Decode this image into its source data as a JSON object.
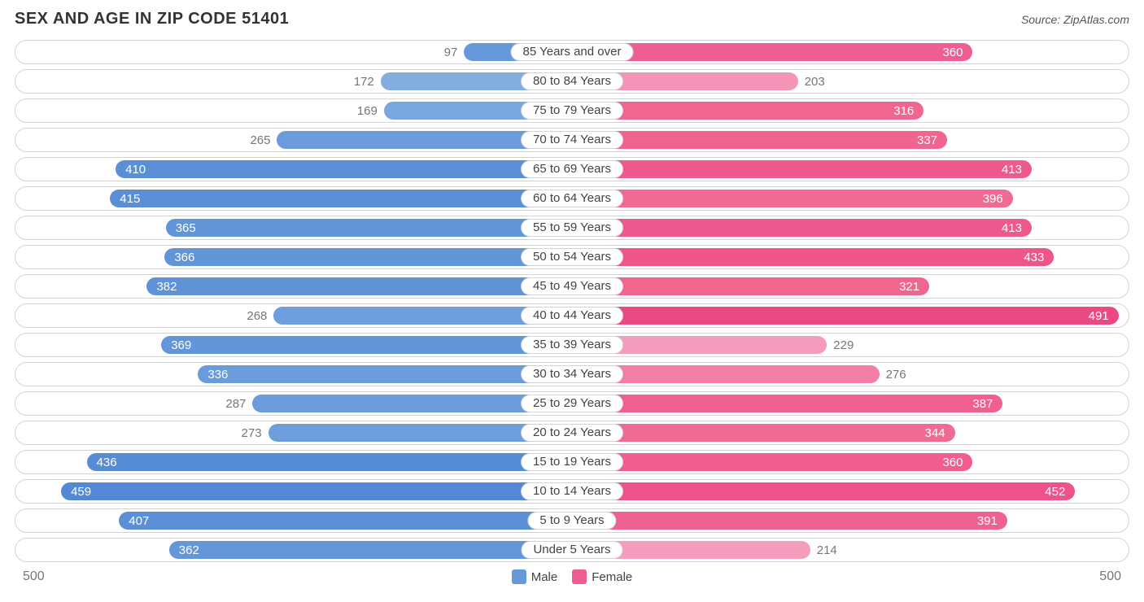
{
  "title": "SEX AND AGE IN ZIP CODE 51401",
  "source": "Source: ZipAtlas.com",
  "axis_max": 500,
  "axis_label_left": "500",
  "axis_label_right": "500",
  "legend": {
    "male": {
      "label": "Male",
      "color": "#6699dc"
    },
    "female": {
      "label": "Female",
      "color": "#ef5e93"
    }
  },
  "colors": {
    "male_shades": [
      "#6699dc",
      "#83acdf",
      "#79a6df",
      "#6b9bdb",
      "#5a8fd6",
      "#5a8fd6",
      "#6294d8",
      "#6294d8",
      "#5f92d7",
      "#6f9edc",
      "#6395d9",
      "#6a9bdb",
      "#6c9cdb",
      "#6e9ddc",
      "#568cd5",
      "#5389d4",
      "#5c90d6",
      "#6496d9"
    ],
    "female_shades": [
      "#ef5e93",
      "#f494b7",
      "#f0668f",
      "#f06490",
      "#ee5a8d",
      "#f06a93",
      "#ee598d",
      "#ed558b",
      "#f0668f",
      "#ea4984",
      "#f59bbb",
      "#f27ea4",
      "#ef608e",
      "#f06b94",
      "#ef5e8e",
      "#ed538a",
      "#ef6190",
      "#f59dbd"
    ],
    "border": "#d4d4d8",
    "bg": "#ffffff",
    "text": "#434345",
    "muted": "#767678"
  },
  "value_inside_threshold": 300,
  "rows": [
    {
      "label": "85 Years and over",
      "male": 97,
      "female": 360
    },
    {
      "label": "80 to 84 Years",
      "male": 172,
      "female": 203
    },
    {
      "label": "75 to 79 Years",
      "male": 169,
      "female": 316
    },
    {
      "label": "70 to 74 Years",
      "male": 265,
      "female": 337
    },
    {
      "label": "65 to 69 Years",
      "male": 410,
      "female": 413
    },
    {
      "label": "60 to 64 Years",
      "male": 415,
      "female": 396
    },
    {
      "label": "55 to 59 Years",
      "male": 365,
      "female": 413
    },
    {
      "label": "50 to 54 Years",
      "male": 366,
      "female": 433
    },
    {
      "label": "45 to 49 Years",
      "male": 382,
      "female": 321
    },
    {
      "label": "40 to 44 Years",
      "male": 268,
      "female": 491
    },
    {
      "label": "35 to 39 Years",
      "male": 369,
      "female": 229
    },
    {
      "label": "30 to 34 Years",
      "male": 336,
      "female": 276
    },
    {
      "label": "25 to 29 Years",
      "male": 287,
      "female": 387
    },
    {
      "label": "20 to 24 Years",
      "male": 273,
      "female": 344
    },
    {
      "label": "15 to 19 Years",
      "male": 436,
      "female": 360
    },
    {
      "label": "10 to 14 Years",
      "male": 459,
      "female": 452
    },
    {
      "label": "5 to 9 Years",
      "male": 407,
      "female": 391
    },
    {
      "label": "Under 5 Years",
      "male": 362,
      "female": 214
    }
  ]
}
